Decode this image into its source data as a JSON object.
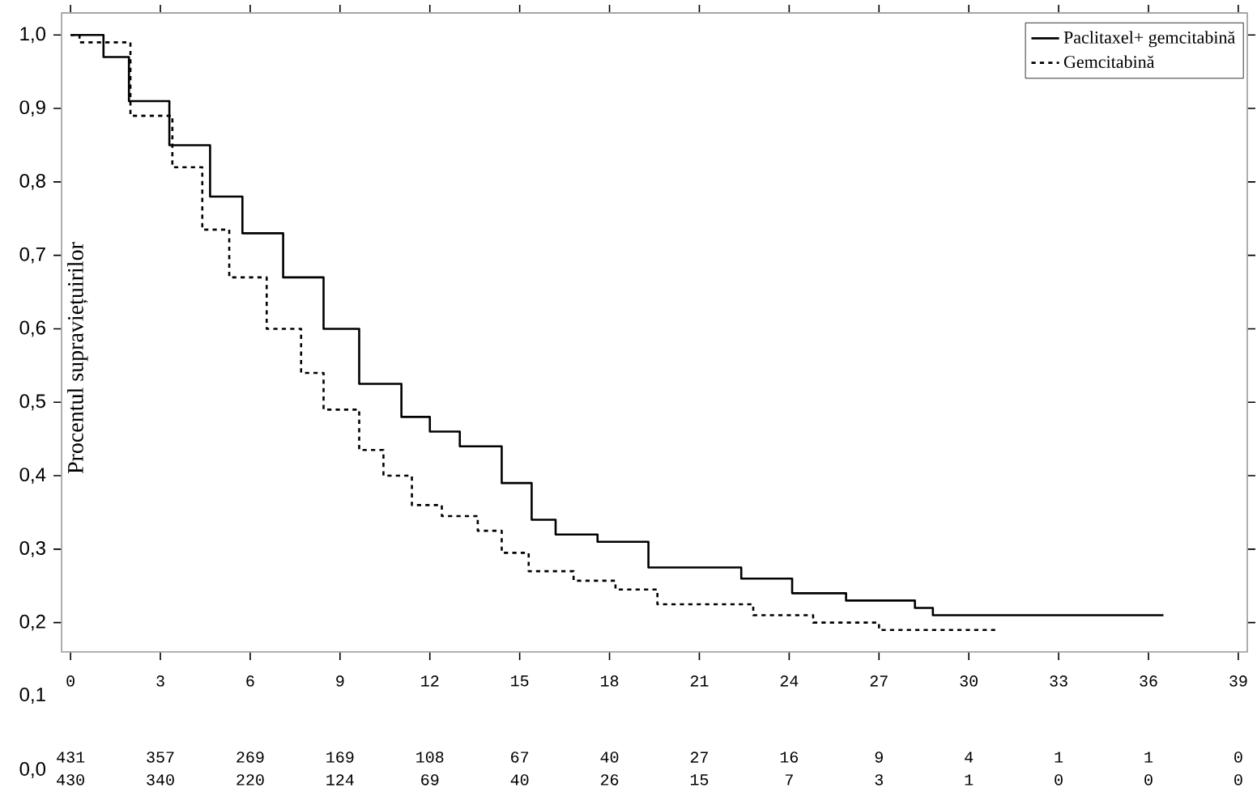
{
  "chart_data": {
    "type": "step",
    "ylabel": "Procentul supraviețuirilor",
    "xlim": [
      -0.3,
      39.3
    ],
    "ylim": [
      0.16,
      1.03
    ],
    "xticks": [
      0,
      3,
      6,
      9,
      12,
      15,
      18,
      21,
      24,
      27,
      30,
      33,
      36,
      39
    ],
    "yticks": [
      {
        "value": 0.2,
        "label": "0,2"
      },
      {
        "value": 0.3,
        "label": "0,3"
      },
      {
        "value": 0.4,
        "label": "0,4"
      },
      {
        "value": 0.5,
        "label": "0,5"
      },
      {
        "value": 0.6,
        "label": "0,6"
      },
      {
        "value": 0.7,
        "label": "0,7"
      },
      {
        "value": 0.8,
        "label": "0,8"
      },
      {
        "value": 0.9,
        "label": "0,9"
      },
      {
        "value": 1.0,
        "label": "1,0"
      }
    ],
    "legend": "top right",
    "marker": "none",
    "series": [
      {
        "name": "Paclitaxel+ gemcitabină",
        "color": "#000000",
        "line_style": "solid",
        "x": [
          0,
          1.1,
          1.95,
          3.3,
          4.66,
          5.74,
          7.1,
          8.45,
          9.64,
          11.05,
          12.0,
          13.0,
          14.4,
          15.4,
          16.2,
          17.6,
          19.3,
          22.4,
          24.1,
          25.9,
          28.2,
          28.8,
          36.5
        ],
        "values": [
          1.0,
          0.97,
          0.91,
          0.85,
          0.78,
          0.73,
          0.67,
          0.6,
          0.525,
          0.48,
          0.46,
          0.44,
          0.39,
          0.34,
          0.32,
          0.31,
          0.275,
          0.26,
          0.24,
          0.23,
          0.22,
          0.21,
          0.21
        ]
      },
      {
        "name": "Gemcitabină",
        "color": "#000000",
        "line_style": "dashed",
        "x": [
          0,
          0.3,
          2.0,
          3.4,
          4.4,
          5.3,
          6.55,
          7.7,
          8.45,
          9.64,
          10.45,
          11.4,
          12.4,
          13.6,
          14.4,
          15.3,
          16.8,
          18.2,
          19.6,
          22.8,
          24.8,
          27.0,
          30.9
        ],
        "values": [
          1.0,
          0.99,
          0.89,
          0.82,
          0.735,
          0.67,
          0.6,
          0.54,
          0.49,
          0.435,
          0.4,
          0.36,
          0.345,
          0.325,
          0.295,
          0.27,
          0.257,
          0.245,
          0.225,
          0.21,
          0.2,
          0.19,
          0.19
        ]
      }
    ],
    "annotations": [
      "0,1",
      "0,0",
      "431",
      "357",
      "269",
      "169",
      "108",
      "67",
      "40",
      "27",
      "16",
      "9",
      "4",
      "1",
      "1",
      "0",
      "430",
      "340",
      "220",
      "124",
      "69",
      "40",
      "26",
      "15",
      "7",
      "3",
      "1",
      "0",
      "0",
      "0"
    ]
  }
}
